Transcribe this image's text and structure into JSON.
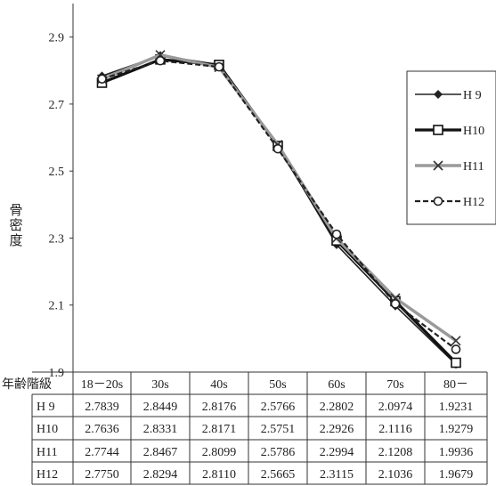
{
  "chart_data": {
    "type": "line",
    "ylabel": "骨密度",
    "row_header": "年齢階級",
    "categories": [
      "18－20s",
      "30s",
      "40s",
      "50s",
      "60s",
      "70s",
      "80－"
    ],
    "ylim": [
      1.9,
      3.0
    ],
    "yticks": [
      "1.9",
      "2.1",
      "2.3",
      "2.5",
      "2.7",
      "2.9"
    ],
    "series": [
      {
        "name": "H 9",
        "values": [
          2.7839,
          2.8449,
          2.8176,
          2.5766,
          2.2802,
          2.0974,
          1.9231
        ],
        "cells": [
          "2.7839",
          "2.8449",
          "2.8176",
          "2.5766",
          "2.2802",
          "2.0974",
          "1.9231"
        ],
        "color": "#222222",
        "marker": "diamond",
        "style": "solid"
      },
      {
        "name": "H10",
        "values": [
          2.7636,
          2.8331,
          2.8171,
          2.5751,
          2.2926,
          2.1116,
          1.9279
        ],
        "cells": [
          "2.7636",
          "2.8331",
          "2.8171",
          "2.5751",
          "2.2926",
          "2.1116",
          "1.9279"
        ],
        "color": "#111111",
        "marker": "square",
        "style": "thick"
      },
      {
        "name": "H11",
        "values": [
          2.7744,
          2.8467,
          2.8099,
          2.5786,
          2.2994,
          2.1208,
          1.9936
        ],
        "cells": [
          "2.7744",
          "2.8467",
          "2.8099",
          "2.5786",
          "2.2994",
          "2.1208",
          "1.9936"
        ],
        "color": "#9a9a9a",
        "marker": "x",
        "style": "gray"
      },
      {
        "name": "H12",
        "values": [
          2.775,
          2.8294,
          2.811,
          2.5665,
          2.3115,
          2.1036,
          1.9679
        ],
        "cells": [
          "2.7750",
          "2.8294",
          "2.8110",
          "2.5665",
          "2.3115",
          "2.1036",
          "1.9679"
        ],
        "color": "#222222",
        "marker": "circle",
        "style": "dashed"
      }
    ],
    "legend_position": "right"
  }
}
